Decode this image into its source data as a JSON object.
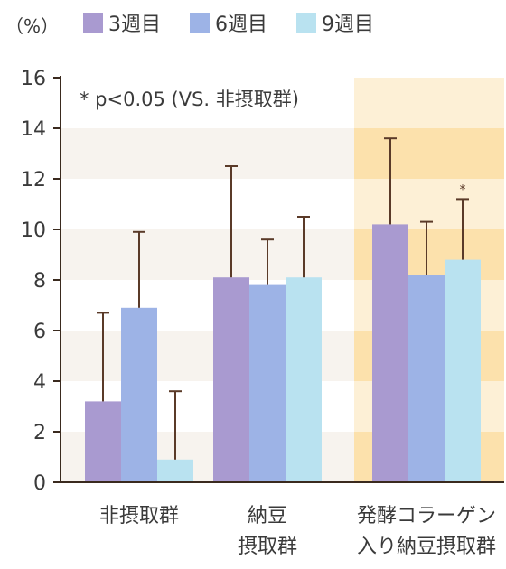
{
  "chart_data": {
    "type": "bar",
    "unit_label": "（%）",
    "annotation": "* p<0.05 (VS. 非摂取群)",
    "categories": [
      [
        "非摂取群"
      ],
      [
        "納豆",
        "摂取群"
      ],
      [
        "発酵コラーゲン",
        "入り納豆摂取群"
      ]
    ],
    "series": [
      {
        "name": "3週目",
        "color": "#a99ad0",
        "values": [
          3.2,
          8.1,
          10.2
        ],
        "errors": [
          3.5,
          4.4,
          3.4
        ]
      },
      {
        "name": "6週目",
        "color": "#9db3e6",
        "values": [
          6.9,
          7.8,
          8.2
        ],
        "errors": [
          3.0,
          1.8,
          2.1
        ]
      },
      {
        "name": "9週目",
        "color": "#b9e2f0",
        "values": [
          0.9,
          8.1,
          8.8
        ],
        "errors": [
          2.7,
          2.4,
          2.4
        ]
      }
    ],
    "significance": [
      {
        "category_index": 2,
        "series_index": 2,
        "label": "*"
      }
    ],
    "highlight_category_index": 2,
    "ylim": [
      0,
      16
    ],
    "yticks": [
      0,
      2,
      4,
      6,
      8,
      10,
      12,
      14,
      16
    ],
    "colors": {
      "axis": "#3a2a1e",
      "error_bar": "#5a3a28",
      "band_light": "#f7f3ee",
      "highlight_base": "#fdf0d6",
      "highlight_band": "#fce1ac"
    }
  }
}
